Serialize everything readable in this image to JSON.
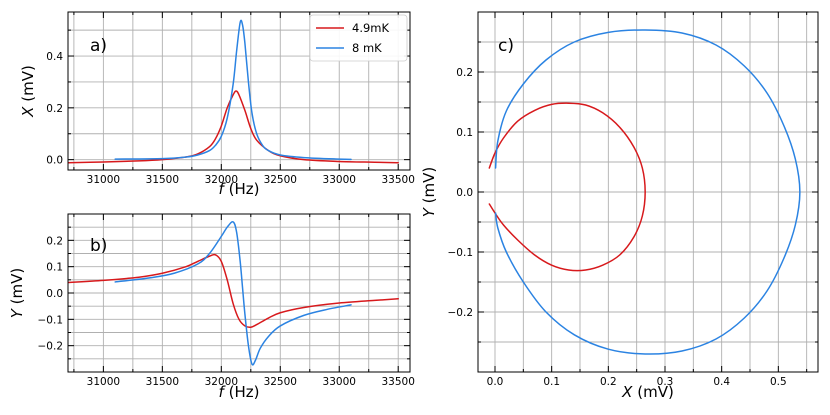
{
  "chart_data": [
    {
      "id": "a",
      "type": "line",
      "panel_label": "a)",
      "xlabel": "f",
      "xunit": "(Hz)",
      "ylabel": "X",
      "yunit": "(mV)",
      "xlim": [
        30700,
        33600
      ],
      "ylim": [
        -0.04,
        0.57
      ],
      "xticks": [
        31000,
        31500,
        32000,
        32500,
        33000,
        33500
      ],
      "yticks": [
        0.0,
        0.2,
        0.4
      ],
      "ytick_labels": [
        "0.0",
        "0.2",
        "0.4"
      ],
      "grid": true,
      "legend": {
        "position": "top-right",
        "entries": [
          {
            "label": "4.9mK",
            "color": "#d7191c"
          },
          {
            "label": "8 mK",
            "color": "#2b83e2"
          }
        ]
      },
      "series": [
        {
          "name": "4.9mK",
          "color": "#d7191c",
          "x": [
            30700,
            31000,
            31300,
            31500,
            31700,
            31800,
            31900,
            31950,
            32000,
            32050,
            32100,
            32125,
            32150,
            32200,
            32250,
            32300,
            32400,
            32500,
            32700,
            33000,
            33300,
            33500
          ],
          "y": [
            -0.012,
            -0.009,
            -0.005,
            0.0,
            0.01,
            0.022,
            0.05,
            0.08,
            0.13,
            0.2,
            0.25,
            0.265,
            0.25,
            0.19,
            0.12,
            0.075,
            0.035,
            0.015,
            0.0,
            -0.007,
            -0.01,
            -0.012
          ]
        },
        {
          "name": "8 mK",
          "color": "#2b83e2",
          "x": [
            31100,
            31500,
            31700,
            31800,
            31900,
            31950,
            32000,
            32050,
            32100,
            32130,
            32160,
            32180,
            32200,
            32230,
            32260,
            32300,
            32350,
            32400,
            32500,
            32700,
            33000,
            33100
          ],
          "y": [
            0.002,
            0.004,
            0.01,
            0.018,
            0.035,
            0.055,
            0.09,
            0.16,
            0.29,
            0.42,
            0.53,
            0.52,
            0.45,
            0.3,
            0.18,
            0.1,
            0.055,
            0.035,
            0.018,
            0.008,
            0.002,
            0.001
          ]
        }
      ]
    },
    {
      "id": "b",
      "type": "line",
      "panel_label": "b)",
      "xlabel": "f",
      "xunit": "(Hz)",
      "ylabel": "Y",
      "yunit": "(mV)",
      "xlim": [
        30700,
        33600
      ],
      "ylim": [
        -0.3,
        0.3
      ],
      "xticks": [
        31000,
        31500,
        32000,
        32500,
        33000,
        33500
      ],
      "yticks": [
        -0.2,
        -0.1,
        0.0,
        0.1,
        0.2
      ],
      "ytick_labels": [
        "−0.2",
        "−0.1",
        "0.0",
        "0.1",
        "0.2"
      ],
      "grid": true,
      "series": [
        {
          "name": "4.9mK",
          "color": "#d7191c",
          "x": [
            30700,
            31000,
            31300,
            31500,
            31700,
            31800,
            31900,
            31950,
            32000,
            32050,
            32100,
            32150,
            32200,
            32250,
            32300,
            32400,
            32500,
            32700,
            33000,
            33300,
            33500
          ],
          "y": [
            0.04,
            0.048,
            0.06,
            0.075,
            0.1,
            0.12,
            0.14,
            0.145,
            0.12,
            0.05,
            -0.04,
            -0.1,
            -0.125,
            -0.13,
            -0.12,
            -0.095,
            -0.075,
            -0.055,
            -0.038,
            -0.028,
            -0.022
          ]
        },
        {
          "name": "8 mK",
          "color": "#2b83e2",
          "x": [
            31100,
            31400,
            31600,
            31800,
            31900,
            32000,
            32050,
            32100,
            32130,
            32160,
            32180,
            32200,
            32230,
            32260,
            32290,
            32330,
            32400,
            32500,
            32700,
            32900,
            33100
          ],
          "y": [
            0.042,
            0.058,
            0.075,
            0.11,
            0.15,
            0.215,
            0.25,
            0.27,
            0.23,
            0.12,
            0.02,
            -0.08,
            -0.2,
            -0.27,
            -0.255,
            -0.21,
            -0.165,
            -0.125,
            -0.085,
            -0.062,
            -0.045
          ]
        }
      ]
    },
    {
      "id": "c",
      "type": "line",
      "panel_label": "c)",
      "xlabel": "X",
      "xunit": "(mV)",
      "ylabel": "Y",
      "yunit": "(mV)",
      "xlim": [
        -0.03,
        0.57
      ],
      "ylim": [
        -0.3,
        0.3
      ],
      "xticks": [
        0.0,
        0.1,
        0.2,
        0.3,
        0.4,
        0.5
      ],
      "xtick_labels": [
        "0.0",
        "0.1",
        "0.2",
        "0.3",
        "0.4",
        "0.5"
      ],
      "yticks": [
        -0.2,
        -0.1,
        0.0,
        0.1,
        0.2
      ],
      "ytick_labels": [
        "−0.2",
        "−0.1",
        "0.0",
        "0.1",
        "0.2"
      ],
      "grid": true,
      "series": [
        {
          "name": "4.9mK",
          "color": "#d7191c",
          "x": [
            -0.01,
            0.0,
            0.015,
            0.04,
            0.07,
            0.1,
            0.13,
            0.16,
            0.19,
            0.22,
            0.245,
            0.26,
            0.265,
            0.26,
            0.245,
            0.22,
            0.19,
            0.16,
            0.13,
            0.1,
            0.07,
            0.04,
            0.015,
            0.0,
            -0.01
          ],
          "y": [
            0.04,
            0.065,
            0.09,
            0.118,
            0.136,
            0.146,
            0.148,
            0.145,
            0.132,
            0.108,
            0.075,
            0.04,
            0.0,
            -0.04,
            -0.075,
            -0.105,
            -0.122,
            -0.13,
            -0.13,
            -0.122,
            -0.105,
            -0.08,
            -0.055,
            -0.035,
            -0.02
          ]
        },
        {
          "name": "8 mK",
          "color": "#2b83e2",
          "x": [
            0.001,
            0.005,
            0.02,
            0.05,
            0.09,
            0.14,
            0.2,
            0.265,
            0.33,
            0.39,
            0.44,
            0.48,
            0.51,
            0.53,
            0.538,
            0.53,
            0.51,
            0.48,
            0.44,
            0.39,
            0.33,
            0.265,
            0.2,
            0.14,
            0.09,
            0.05,
            0.02,
            0.005,
            0.001
          ],
          "y": [
            0.04,
            0.085,
            0.135,
            0.18,
            0.22,
            0.25,
            0.266,
            0.27,
            0.265,
            0.245,
            0.21,
            0.165,
            0.11,
            0.055,
            0.0,
            -0.055,
            -0.11,
            -0.165,
            -0.21,
            -0.245,
            -0.265,
            -0.27,
            -0.262,
            -0.238,
            -0.2,
            -0.15,
            -0.1,
            -0.06,
            -0.035
          ]
        }
      ]
    }
  ]
}
